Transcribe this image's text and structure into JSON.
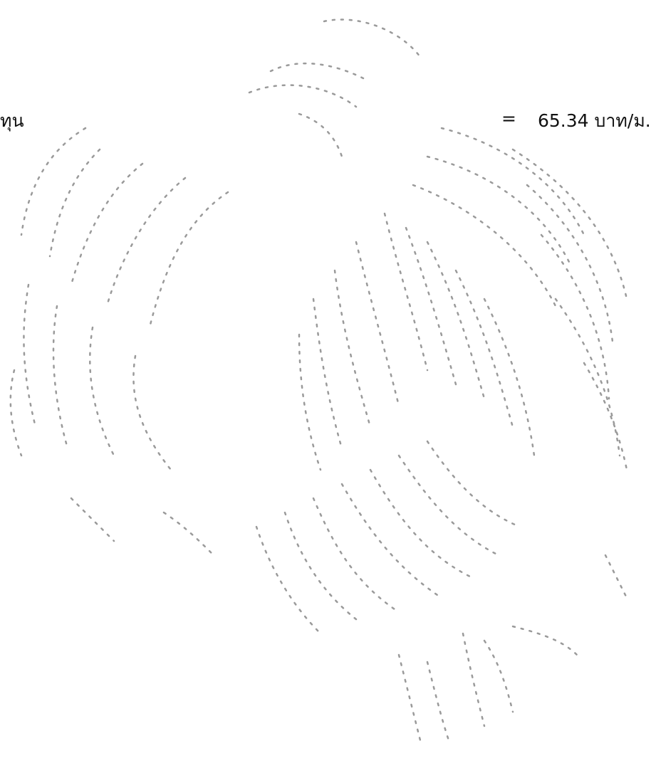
{
  "document": {
    "cost_line": {
      "label": "ทุน",
      "equals": "=",
      "value": "65.34 บาท/ม."
    }
  },
  "watermark": {
    "icon": "garuda-emblem-icon",
    "color": "#9a9a9a"
  }
}
